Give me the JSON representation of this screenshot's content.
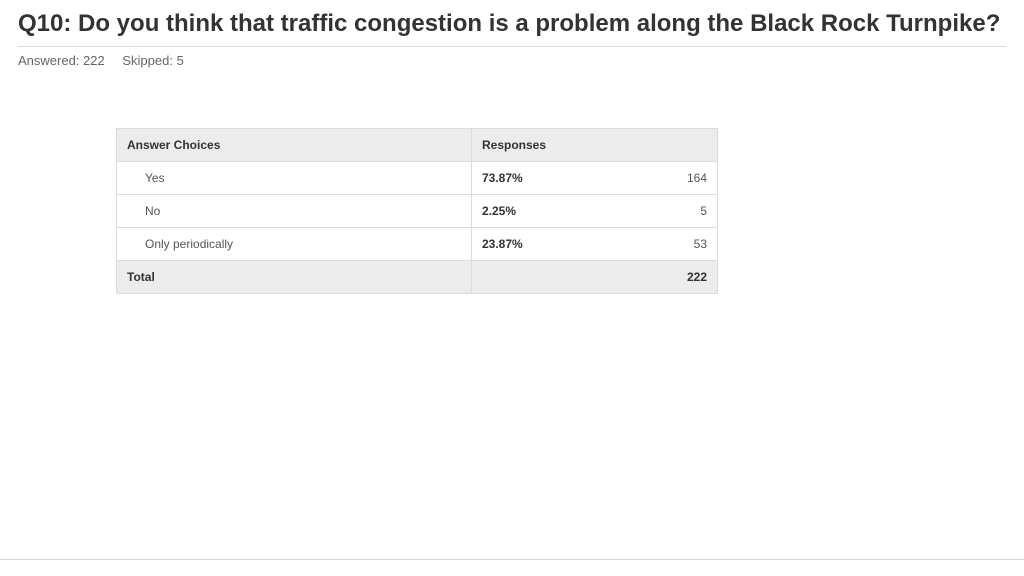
{
  "title": "Q10: Do you think that traffic congestion is a problem along the Black Rock Turnpike?",
  "stats": {
    "answered_label": "Answered: 222",
    "skipped_label": "Skipped: 5"
  },
  "table": {
    "headers": {
      "choices": "Answer Choices",
      "responses": "Responses"
    },
    "rows": [
      {
        "label": "Yes",
        "pct": "73.87%",
        "count": "164"
      },
      {
        "label": "No",
        "pct": "2.25%",
        "count": "5"
      },
      {
        "label": "Only periodically",
        "pct": "23.87%",
        "count": "53"
      }
    ],
    "total": {
      "label": "Total",
      "value": "222"
    }
  },
  "colors": {
    "background": "#ffffff",
    "title_text": "#333333",
    "stats_text": "#666666",
    "border": "#dcdcdc",
    "header_bg": "#ececec",
    "body_text": "#555555",
    "bold_text": "#333333"
  }
}
